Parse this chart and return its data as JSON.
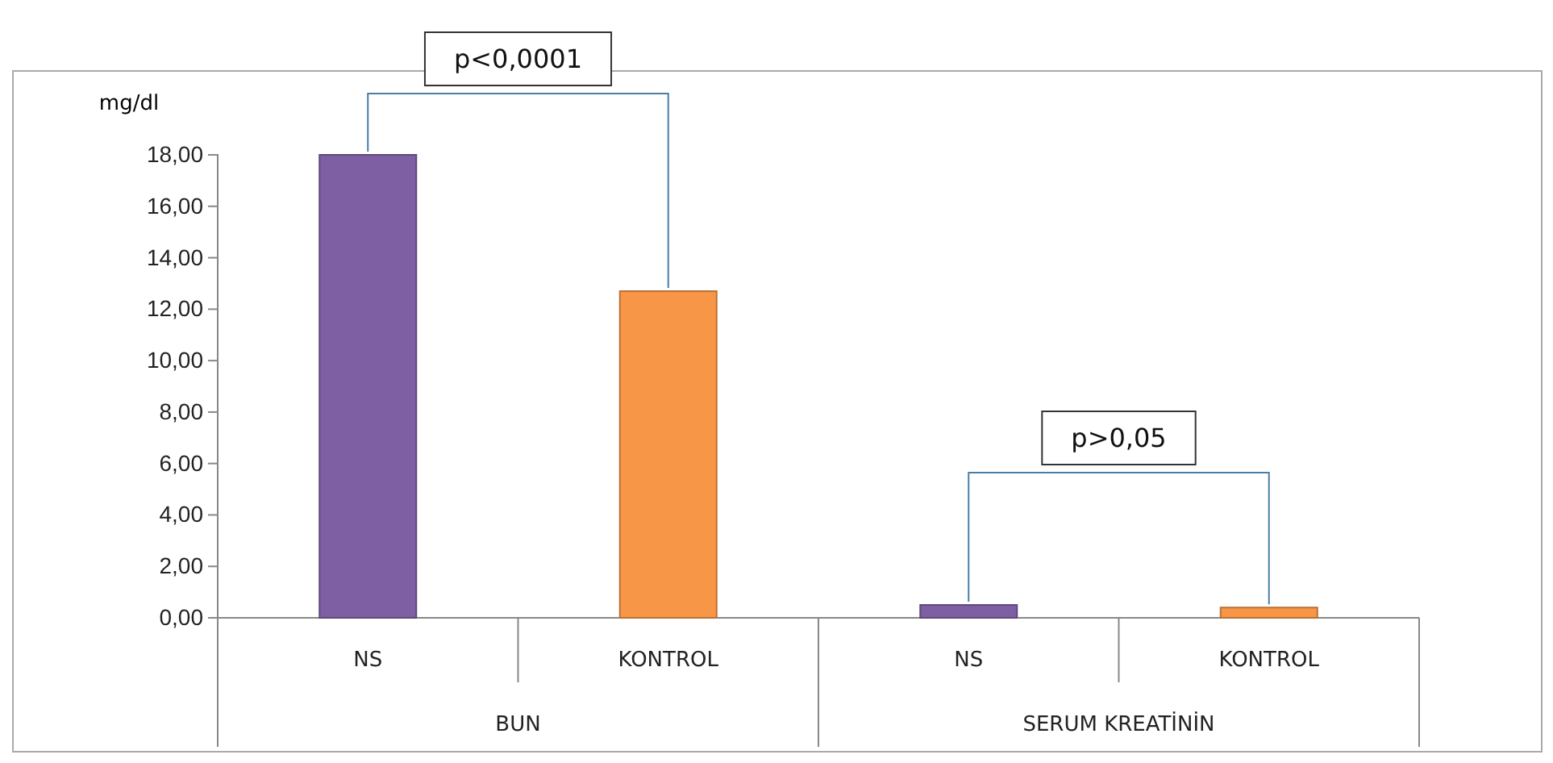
{
  "chart_data": {
    "type": "bar",
    "ylabel": "mg/dl",
    "categories": [
      "BUN",
      "SERUM KREATİNİN"
    ],
    "series": [
      {
        "name": "NS",
        "color": "#7e5fa3",
        "values": [
          18,
          0.5
        ]
      },
      {
        "name": "KONTROL",
        "color": "#f79646",
        "values": [
          12.7,
          0.4
        ]
      }
    ],
    "ylim": [
      0,
      18
    ],
    "yticks": [
      {
        "value": 0,
        "label": "0,00"
      },
      {
        "value": 2,
        "label": "2,00"
      },
      {
        "value": 4,
        "label": "4,00"
      },
      {
        "value": 6,
        "label": "6,00"
      },
      {
        "value": 8,
        "label": "8,00"
      },
      {
        "value": 10,
        "label": "10,00"
      },
      {
        "value": 12,
        "label": "12,00"
      },
      {
        "value": 14,
        "label": "14,00"
      },
      {
        "value": 16,
        "label": "16,00"
      },
      {
        "value": 18,
        "label": "18,00"
      }
    ],
    "annotations": [
      "p<0,0001",
      "p>0,05"
    ],
    "legend": false,
    "grid": false
  }
}
